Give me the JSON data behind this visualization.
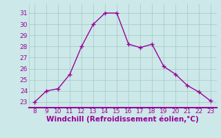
{
  "x": [
    8,
    9,
    10,
    11,
    12,
    13,
    14,
    15,
    16,
    17,
    18,
    19,
    20,
    21,
    22,
    23
  ],
  "y": [
    23,
    24,
    24.2,
    25.5,
    28,
    30,
    31,
    31,
    28.2,
    27.9,
    28.2,
    26.2,
    25.5,
    24.5,
    23.9,
    23.1
  ],
  "line_color": "#990099",
  "marker": "+",
  "marker_size": 4,
  "marker_lw": 1.0,
  "line_width": 1.0,
  "bg_color": "#cce8e8",
  "grid_color": "#aacccc",
  "xlabel": "Windchill (Refroidissement éolien,°C)",
  "xlabel_color": "#990099",
  "xlabel_fontsize": 7.5,
  "tick_color": "#990099",
  "tick_fontsize": 6.5,
  "ylim": [
    22.5,
    31.8
  ],
  "xlim": [
    7.5,
    23.5
  ],
  "yticks": [
    23,
    24,
    25,
    26,
    27,
    28,
    29,
    30,
    31
  ],
  "xticks": [
    8,
    9,
    10,
    11,
    12,
    13,
    14,
    15,
    16,
    17,
    18,
    19,
    20,
    21,
    22,
    23
  ],
  "separator_color": "#990099",
  "separator_lw": 1.5
}
